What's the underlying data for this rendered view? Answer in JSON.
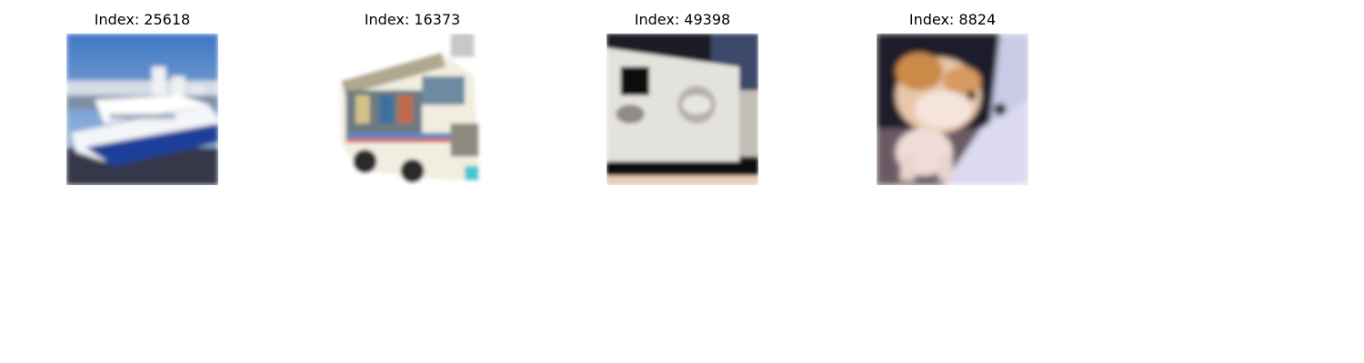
{
  "panels": [
    {
      "title": "Index: 25618",
      "depicts": "ship-image"
    },
    {
      "title": "Index: 16373",
      "depicts": "truck-image"
    },
    {
      "title": "Index: 49398",
      "depicts": "truck-image"
    },
    {
      "title": "Index: 8824",
      "depicts": "dog-image"
    }
  ]
}
